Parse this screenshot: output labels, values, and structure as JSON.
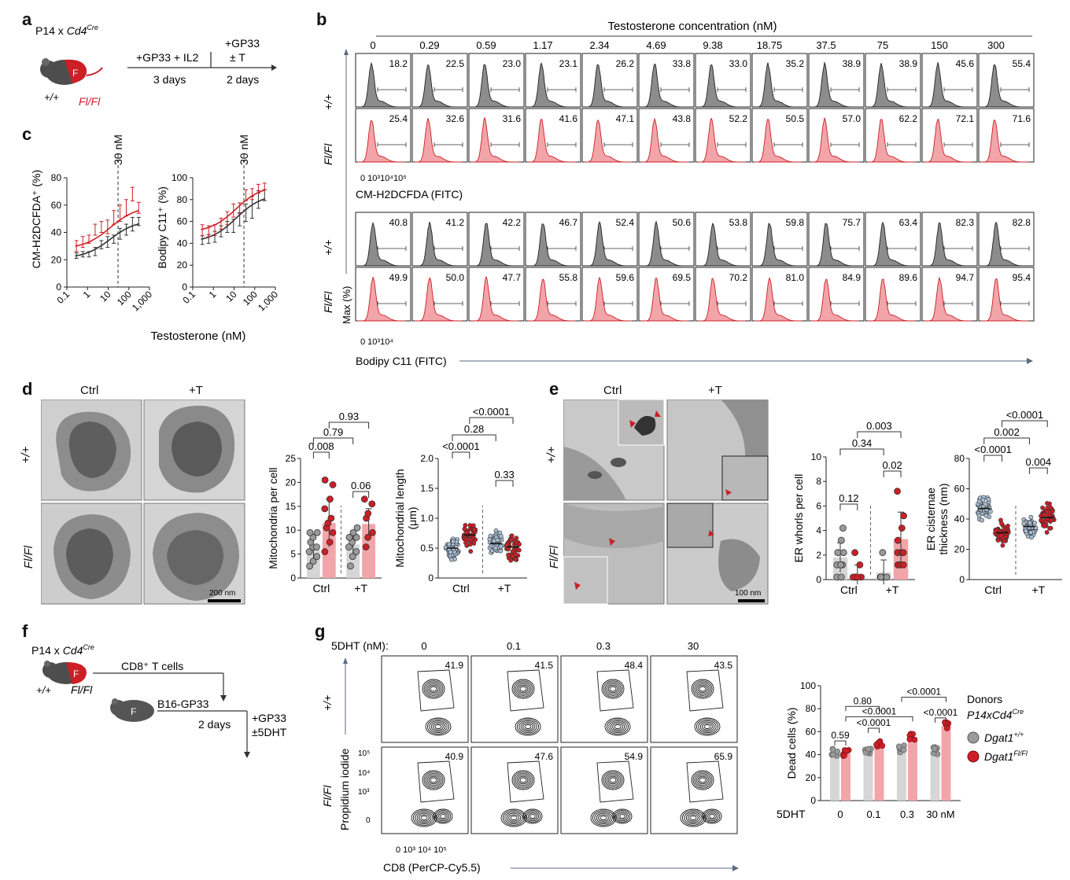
{
  "panels": {
    "a": "a",
    "b": "b",
    "c": "c",
    "d": "d",
    "e": "e",
    "f": "f",
    "g": "g"
  },
  "colors": {
    "red": "#cc1f26",
    "pink": "#f2a5a9",
    "grey": "#8f8f8f",
    "dark": "#333333",
    "lightgrey": "#d6d6d6"
  },
  "a": {
    "mouse_text": "P14 x ",
    "cre_text": "Cd4",
    "cre_sup": "Cre",
    "wt": "+/+",
    "flfl": "Fl/Fl",
    "badge": "F",
    "step1_top": "+GP33 + IL2",
    "step1_bottom": "3 days",
    "step2_top": "+GP33",
    "step2_mid": "± T",
    "step2_bottom": "2 days"
  },
  "b": {
    "header": "Testosterone concentration (nM)",
    "concentrations": [
      "0",
      "0.29",
      "0.59",
      "1.17",
      "2.34",
      "4.69",
      "9.38",
      "18.75",
      "37.5",
      "75",
      "150",
      "300"
    ],
    "row_labels": [
      "+/+",
      "Fl/Fl",
      "+/+",
      "Fl/Fl"
    ],
    "h2dcfda_wt": [
      "18.2",
      "22.5",
      "23.0",
      "23.1",
      "26.2",
      "33.8",
      "33.0",
      "35.2",
      "38.9",
      "38.9",
      "45.6",
      "55.4"
    ],
    "h2dcfda_fl": [
      "25.4",
      "32.6",
      "31.6",
      "41.6",
      "47.1",
      "43.8",
      "52.2",
      "50.5",
      "57.0",
      "62.2",
      "72.1",
      "71.6"
    ],
    "bodipy_wt": [
      "40.8",
      "41.2",
      "42.2",
      "46.7",
      "52.4",
      "50.6",
      "53.8",
      "59.8",
      "75.7",
      "63.4",
      "82.3",
      "82.8"
    ],
    "bodipy_fl": [
      "49.9",
      "50.0",
      "47.7",
      "55.8",
      "59.6",
      "69.5",
      "70.2",
      "81.0",
      "84.9",
      "89.6",
      "94.7",
      "95.4"
    ],
    "axis1_ticks": "0 10³10⁴10⁵",
    "axis1_label": "CM-H2DCFDA (FITC)",
    "axis2_ticks": "0   10³10⁴",
    "axis2_label": "Bodipy C11 (FITC)",
    "y_label": "Max (%)"
  },
  "c": {
    "line_label": "30 nM",
    "xlabel": "Testosterone (nM)",
    "xticks": [
      "0.1",
      "1",
      "10",
      "100",
      "1,000"
    ],
    "chart_data": [
      {
        "type": "line",
        "title": "",
        "ylabel": "CM-H2DCFDA⁺ (%)",
        "xlabel": "Testosterone (nM)",
        "xscale": "log",
        "ylim": [
          0,
          80
        ],
        "yticks": [
          "0",
          "20",
          "40",
          "60",
          "80"
        ],
        "vline": 30,
        "x": [
          0.29,
          0.59,
          1.17,
          2.34,
          4.69,
          9.38,
          18.75,
          37.5,
          75,
          150,
          300
        ],
        "series": [
          {
            "name": "Dgat1 +/+",
            "color": "#333333",
            "values": [
              23,
              24,
              24,
              26,
              31,
              33,
              35,
              39,
              42,
              46,
              48
            ],
            "err": [
              2,
              2,
              2,
              3,
              3,
              4,
              3,
              4,
              4,
              5,
              3
            ]
          },
          {
            "name": "Dgat1 Fl/Fl",
            "color": "#cc1f26",
            "values": [
              30,
              33,
              35,
              42,
              44,
              44,
              51,
              54,
              58,
              68,
              58
            ],
            "err": [
              4,
              4,
              3,
              4,
              4,
              5,
              5,
              6,
              6,
              5,
              4
            ]
          }
        ]
      },
      {
        "type": "line",
        "title": "",
        "ylabel": "Bodipy C11⁺ (%)",
        "xlabel": "Testosterone (nM)",
        "xscale": "log",
        "ylim": [
          0,
          100
        ],
        "yticks": [
          "0",
          "20",
          "40",
          "60",
          "80",
          "100"
        ],
        "vline": 30,
        "x": [
          0.29,
          0.59,
          1.17,
          2.34,
          4.69,
          9.38,
          18.75,
          37.5,
          75,
          150,
          300
        ],
        "series": [
          {
            "name": "Dgat1 +/+",
            "color": "#333333",
            "values": [
              43,
              44,
              46,
              51,
              55,
              56,
              62,
              68,
              73,
              80,
              84
            ],
            "err": [
              4,
              4,
              5,
              5,
              5,
              6,
              6,
              8,
              10,
              8,
              5
            ]
          },
          {
            "name": "Dgat1 Fl/Fl",
            "color": "#cc1f26",
            "values": [
              52,
              51,
              52,
              58,
              63,
              70,
              72,
              84,
              85,
              90,
              92
            ],
            "err": [
              5,
              5,
              5,
              5,
              6,
              6,
              5,
              5,
              5,
              4,
              3
            ]
          }
        ]
      }
    ]
  },
  "d": {
    "col_labels": [
      "Ctrl",
      "+T"
    ],
    "row_labels": [
      "+/+",
      "Fl/Fl"
    ],
    "scale_bar": "200 nm",
    "mito_count": {
      "ylabel": "Mitochondria per cell",
      "yticks": [
        "0",
        "5",
        "10",
        "15",
        "20",
        "25"
      ],
      "ylim": [
        0,
        25
      ],
      "xlabels": [
        "Ctrl",
        "+T"
      ],
      "pvals": [
        "0.008",
        "0.06",
        "0.79",
        "0.93"
      ],
      "bars": [
        6.0,
        11.5,
        7.0,
        11.3
      ],
      "err": [
        2.3,
        5.0,
        2.2,
        3.2
      ],
      "points": [
        [
          2,
          3,
          4,
          5,
          6,
          6,
          7,
          8,
          9,
          9
        ],
        [
          5,
          7,
          9,
          10,
          11,
          12,
          14,
          16,
          19,
          20
        ],
        [
          2,
          4,
          5,
          6,
          7,
          8,
          8,
          9,
          10
        ],
        [
          6,
          8,
          9,
          12,
          13,
          15,
          16
        ]
      ]
    },
    "mito_length": {
      "ylabel": "Mitochondrial length (μm)",
      "yticks": [
        "0",
        "0.5",
        "1.0",
        "1.5",
        "2.0"
      ],
      "ylim": [
        0,
        2.0
      ],
      "xlabels": [
        "Ctrl",
        "+T"
      ],
      "pvals": [
        "<0.0001",
        "0.33",
        "0.28",
        "<0.0001"
      ],
      "means": [
        0.5,
        0.72,
        0.58,
        0.52
      ]
    }
  },
  "e": {
    "col_labels": [
      "Ctrl",
      "+T"
    ],
    "row_labels": [
      "+/+",
      "Fl/Fl"
    ],
    "scale_bar": "100 nm",
    "whorls": {
      "ylabel": "ER whorls per cell",
      "yticks": [
        "0",
        "2",
        "4",
        "6",
        "8",
        "10"
      ],
      "ylim": [
        0,
        10
      ],
      "xlabels": [
        "Ctrl",
        "+T"
      ],
      "pvals": [
        "0.12",
        "0.02",
        "0.34",
        "0.003"
      ],
      "bars": [
        1.8,
        0.4,
        0.6,
        3.3
      ],
      "err": [
        1.2,
        0.8,
        1.0,
        2.2
      ],
      "points": [
        [
          0,
          0,
          1,
          1,
          1,
          2,
          2,
          3,
          4
        ],
        [
          0,
          0,
          0,
          0,
          0,
          1,
          2
        ],
        [
          0,
          0,
          0,
          0,
          2
        ],
        [
          1,
          1,
          1,
          2,
          2,
          2,
          3,
          4,
          5,
          7
        ]
      ]
    },
    "cisternae": {
      "ylabel": "ER cisternae thickness (nm)",
      "yticks": [
        "0",
        "20",
        "40",
        "60",
        "80"
      ],
      "ylim": [
        0,
        80
      ],
      "xlabels": [
        "Ctrl",
        "+T"
      ],
      "pvals": [
        "<0.0001",
        "0.004",
        "0.002",
        "<0.0001"
      ],
      "means": [
        47,
        31,
        35,
        41
      ]
    }
  },
  "f": {
    "mouse_text": "P14 x ",
    "cre_text": "Cd4",
    "cre_sup": "Cre",
    "wt": "+/+",
    "flfl": "Fl/Fl",
    "badge": "F",
    "cells": "CD8⁺ T cells",
    "tumor": "B16-GP33",
    "days": "2 days",
    "treat1": "+GP33",
    "treat2": "±5DHT"
  },
  "g": {
    "header": "5DHT (nM):",
    "concentrations": [
      "0",
      "0.1",
      "0.3",
      "30"
    ],
    "row_labels": [
      "+/+",
      "Fl/Fl"
    ],
    "wt_vals": [
      "41.9",
      "41.5",
      "48.4",
      "43.5"
    ],
    "fl_vals": [
      "40.9",
      "47.6",
      "54.9",
      "65.9"
    ],
    "ylabel": "Propidium iodide",
    "yticks": [
      "10⁵",
      "10⁴",
      "10³",
      "0"
    ],
    "xticks": "0  10³  10⁴  10⁵",
    "xlabel": "CD8 (PerCP-Cy5.5)",
    "dead": {
      "ylabel": "Dead cells (%)",
      "yticks": [
        "0",
        "20",
        "40",
        "60",
        "80",
        "100"
      ],
      "ylim": [
        0,
        100
      ],
      "xlabel_prefix": "5DHT",
      "xlabels": [
        "0",
        "0.1",
        "0.3",
        "30 nM"
      ],
      "pvals": [
        "0.59",
        "0.80",
        "<0.0001",
        "<0.0001",
        "<0.0001",
        "<0.0001"
      ],
      "wt": [
        42,
        43,
        45,
        43
      ],
      "fl": [
        41,
        49,
        55,
        65
      ]
    },
    "legend_title": "Donors",
    "legend_sub": "P14xCd4",
    "legend_sub_sup": "Cre",
    "legend_wt": "Dgat1",
    "legend_wt_sup": "+/+",
    "legend_fl": "Dgat1",
    "legend_fl_sup": "Fl/Fl"
  }
}
